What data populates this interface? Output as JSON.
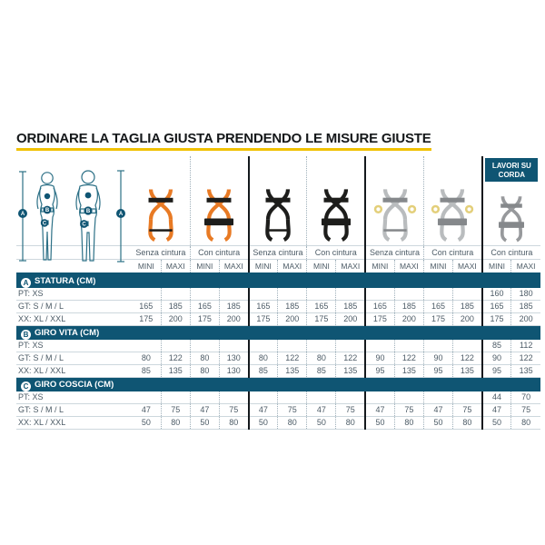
{
  "title": "ORDINARE LA TAGLIA GIUSTA PRENDENDO LE MISURE GIUSTE",
  "colors": {
    "header_blue": "#0f5573",
    "accent_yellow": "#f0c100",
    "orange": "#e87a24",
    "black": "#1d1d1b",
    "gray_light": "#b9bcbe",
    "gray_mid": "#97999c",
    "gray_dark": "#85888b",
    "ring_yellow": "#e3cf7a",
    "figure_line": "#2c7086",
    "text_dark": "#4c5b66"
  },
  "figures": {
    "markers": [
      {
        "letter": "A",
        "meaning": "statura"
      },
      {
        "letter": "B",
        "meaning": "giro vita"
      },
      {
        "letter": "C",
        "meaning": "giro coscia"
      }
    ]
  },
  "corner_badge": {
    "line1": "LAVORI SU",
    "line2": "CORDA"
  },
  "table": {
    "column_groups": [
      {
        "label": "Senza cintura",
        "harness": "orange-no-belt-harness-icon"
      },
      {
        "label": "Con cintura",
        "harness": "orange-belt-harness-icon"
      },
      {
        "label": "Senza cintura",
        "harness": "black-no-belt-harness-icon"
      },
      {
        "label": "Con cintura",
        "harness": "black-belt-harness-icon"
      },
      {
        "label": "Senza cintura",
        "harness": "gray-no-belt-harness-icon"
      },
      {
        "label": "Con cintura",
        "harness": "gray-belt-harness-icon"
      },
      {
        "label": "Con cintura",
        "harness": "rope-work-harness-icon",
        "badge": true
      }
    ],
    "subcolumns": [
      "MINI",
      "MAXI"
    ],
    "sections": [
      {
        "letter": "A",
        "title": "STATURA (CM)",
        "rows": [
          {
            "label": "PT: XS",
            "values": [
              "",
              "",
              "",
              "",
              "",
              "",
              "",
              "",
              "",
              "",
              "",
              "",
              "160",
              "180"
            ]
          },
          {
            "label": "GT: S / M / L",
            "values": [
              "165",
              "185",
              "165",
              "185",
              "165",
              "185",
              "165",
              "185",
              "165",
              "185",
              "165",
              "185",
              "165",
              "185"
            ]
          },
          {
            "label": "XX: XL / XXL",
            "values": [
              "175",
              "200",
              "175",
              "200",
              "175",
              "200",
              "175",
              "200",
              "175",
              "200",
              "175",
              "200",
              "175",
              "200"
            ]
          }
        ]
      },
      {
        "letter": "B",
        "title": "GIRO VITA (CM)",
        "rows": [
          {
            "label": "PT: XS",
            "values": [
              "",
              "",
              "",
              "",
              "",
              "",
              "",
              "",
              "",
              "",
              "",
              "",
              "85",
              "112"
            ]
          },
          {
            "label": "GT: S / M / L",
            "values": [
              "80",
              "122",
              "80",
              "130",
              "80",
              "122",
              "80",
              "122",
              "90",
              "122",
              "90",
              "122",
              "90",
              "122"
            ]
          },
          {
            "label": "XX: XL / XXL",
            "values": [
              "85",
              "135",
              "80",
              "130",
              "85",
              "135",
              "85",
              "135",
              "95",
              "135",
              "95",
              "135",
              "95",
              "135"
            ]
          }
        ]
      },
      {
        "letter": "C",
        "title": "GIRO COSCIA (CM)",
        "rows": [
          {
            "label": "PT: XS",
            "values": [
              "",
              "",
              "",
              "",
              "",
              "",
              "",
              "",
              "",
              "",
              "",
              "",
              "44",
              "70"
            ]
          },
          {
            "label": "GT: S / M / L",
            "values": [
              "47",
              "75",
              "47",
              "75",
              "47",
              "75",
              "47",
              "75",
              "47",
              "75",
              "47",
              "75",
              "47",
              "75"
            ]
          },
          {
            "label": "XX: XL / XXL",
            "values": [
              "50",
              "80",
              "50",
              "80",
              "50",
              "80",
              "50",
              "80",
              "50",
              "80",
              "50",
              "80",
              "50",
              "80"
            ]
          }
        ]
      }
    ]
  }
}
